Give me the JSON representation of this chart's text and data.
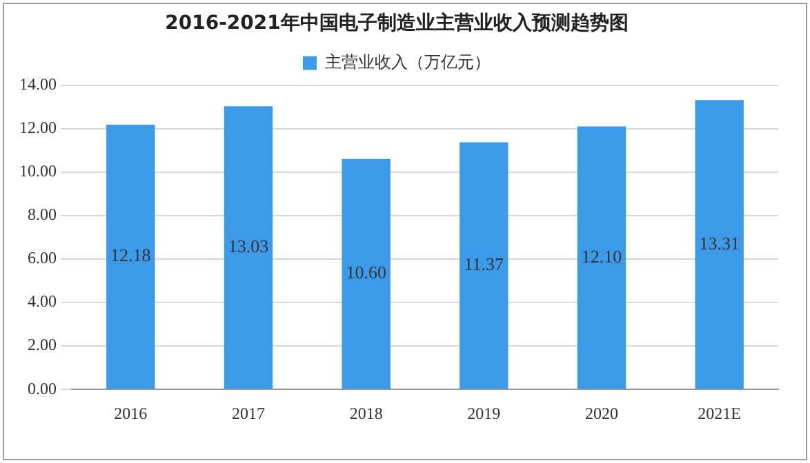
{
  "chart_data": {
    "type": "bar",
    "title": "2016-2021年中国电子制造业主营业收入预测趋势图",
    "categories": [
      "2016",
      "2017",
      "2018",
      "2019",
      "2020",
      "2021E"
    ],
    "series": [
      {
        "name": "主营业收入（万亿元）",
        "color": "#3d9ae8",
        "values": [
          12.18,
          13.03,
          10.6,
          11.37,
          12.1,
          13.31
        ],
        "value_labels": [
          "12.18",
          "13.03",
          "10.60",
          "11.37",
          "12.10",
          "13.31"
        ]
      }
    ],
    "ylim": [
      0,
      14
    ],
    "yticks": [
      {
        "value": 0,
        "label": "0.00"
      },
      {
        "value": 2,
        "label": "2.00"
      },
      {
        "value": 4,
        "label": "4.00"
      },
      {
        "value": 6,
        "label": "6.00"
      },
      {
        "value": 8,
        "label": "8.00"
      },
      {
        "value": 10,
        "label": "10.00"
      },
      {
        "value": 12,
        "label": "12.00"
      },
      {
        "value": 14,
        "label": "14.00"
      }
    ],
    "grid": "y",
    "legend": "top"
  }
}
